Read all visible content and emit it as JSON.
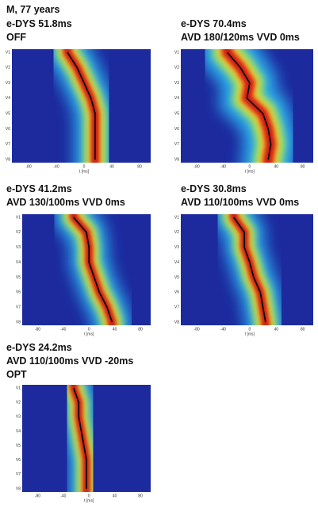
{
  "header": {
    "title": "M, 77 years"
  },
  "axes": {
    "y_labels": [
      "V1",
      "V2",
      "V3",
      "V4",
      "V5",
      "V6",
      "V7",
      "V8"
    ],
    "x_labels": [
      "-80",
      "-40",
      "0",
      "40",
      "80"
    ],
    "x_title": "t [ms]"
  },
  "panels": [
    {
      "lines": [
        "e-DYS 51.8ms",
        "OFF"
      ]
    },
    {
      "lines": [
        "e-DYS 70.4ms",
        "AVD 180/120ms VVD 0ms"
      ]
    },
    {
      "lines": [
        "e-DYS 41.2ms",
        "AVD 130/100ms VVD 0ms"
      ]
    },
    {
      "lines": [
        "e-DYS 30.8ms",
        "AVD 110/100ms VVD 0ms"
      ]
    },
    {
      "lines": [
        "e-DYS 24.2ms",
        "AVD 110/100ms VVD -20ms",
        "OPT"
      ]
    }
  ]
}
